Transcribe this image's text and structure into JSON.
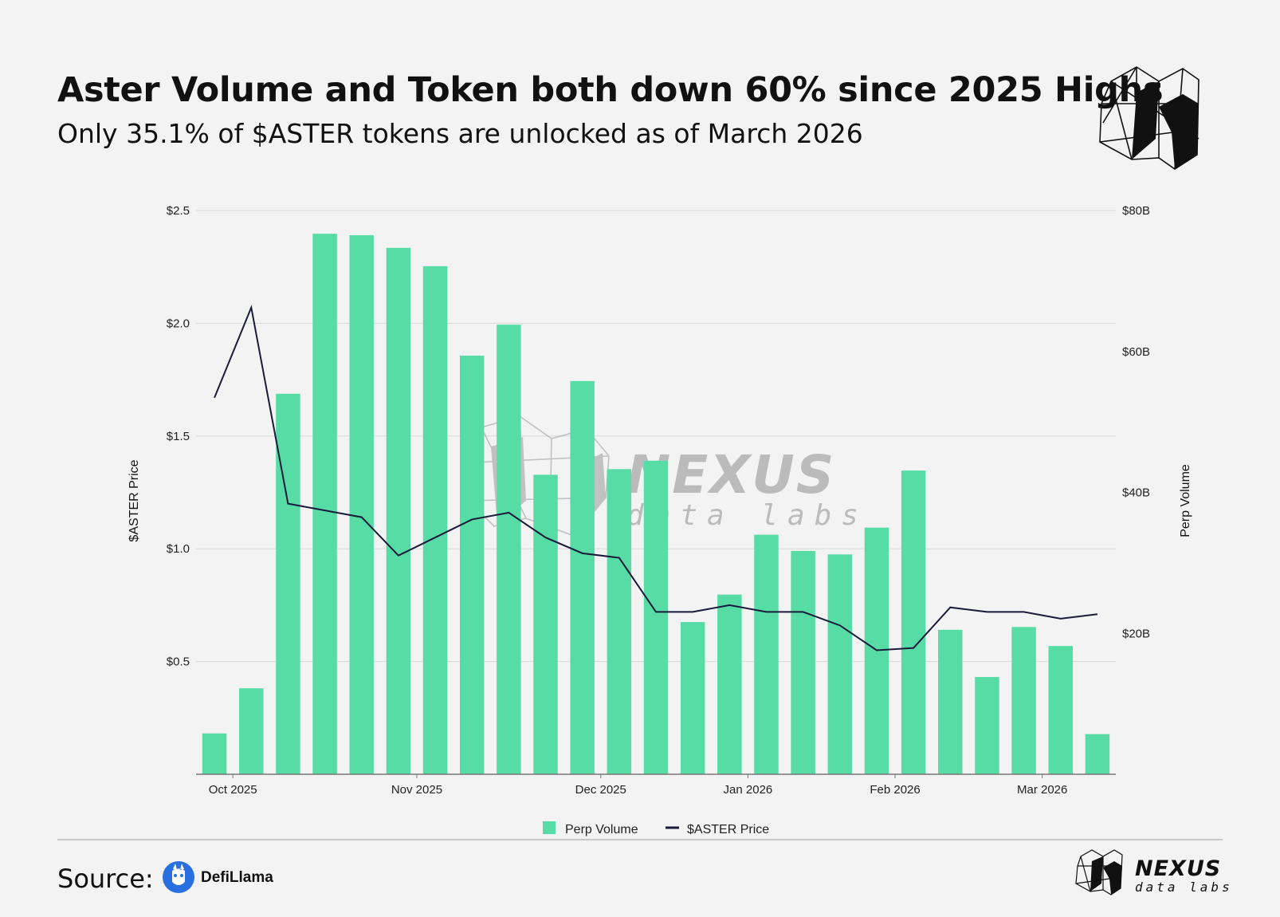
{
  "header": {
    "title": "Aster Volume and Token both down 60% since 2025 Highs",
    "subtitle": "Only 35.1% of $ASTER tokens are unlocked as of March 2026"
  },
  "footer": {
    "source_label": "Source:",
    "source_name": "DefiLlama",
    "brand_name": "NEXUS",
    "brand_sub": "data labs"
  },
  "watermark": {
    "name": "NEXUS",
    "sub": "data labs"
  },
  "colors": {
    "bar": "#57dca6",
    "line": "#1a1a3a",
    "grid": "#d9d9d9",
    "axis": "#777777",
    "background": "#f3f3f3"
  },
  "chart_data": {
    "type": "bar",
    "title": "Aster Volume and Token both down 60% since 2025 Highs",
    "x_tick_labels": [
      "Oct 2025",
      "Nov 2025",
      "Dec 2025",
      "Jan 2026",
      "Feb 2026",
      "Mar 2026"
    ],
    "x_tick_after_bar": [
      0,
      5,
      10,
      14,
      18,
      22
    ],
    "y_left": {
      "label": "$ASTER Price",
      "min": 0,
      "max": 2.5,
      "ticks": [
        0.5,
        1.0,
        1.5,
        2.0,
        2.5
      ],
      "tick_labels": [
        "$0.5",
        "$1.0",
        "$1.5",
        "$2.0",
        "$2.5"
      ]
    },
    "y_right": {
      "label": "Perp Volume",
      "min": 0,
      "max": 80,
      "unit": "B",
      "ticks": [
        20,
        40,
        60,
        80
      ],
      "tick_labels": [
        "$20B",
        "$40B",
        "$60B",
        "$80B"
      ]
    },
    "series": [
      {
        "name": "Perp Volume",
        "type": "bar",
        "axis": "right",
        "unit": "USD billions",
        "values": [
          5.8,
          12.2,
          54.0,
          76.7,
          76.5,
          74.7,
          72.1,
          59.4,
          63.8,
          42.5,
          55.8,
          43.3,
          44.5,
          21.6,
          25.5,
          34.0,
          31.7,
          31.2,
          35.0,
          43.1,
          20.5,
          13.8,
          20.9,
          18.2,
          5.7
        ]
      },
      {
        "name": "$ASTER Price",
        "type": "line",
        "axis": "left",
        "unit": "USD",
        "values": [
          1.67,
          2.07,
          1.2,
          1.17,
          1.14,
          0.97,
          1.05,
          1.13,
          1.16,
          1.05,
          0.98,
          0.96,
          0.72,
          0.72,
          0.75,
          0.72,
          0.72,
          0.66,
          0.55,
          0.56,
          0.74,
          0.72,
          0.72,
          0.69,
          0.71
        ]
      }
    ],
    "legend": [
      "Perp Volume",
      "$ASTER Price"
    ],
    "legend_position": "bottom-center"
  }
}
